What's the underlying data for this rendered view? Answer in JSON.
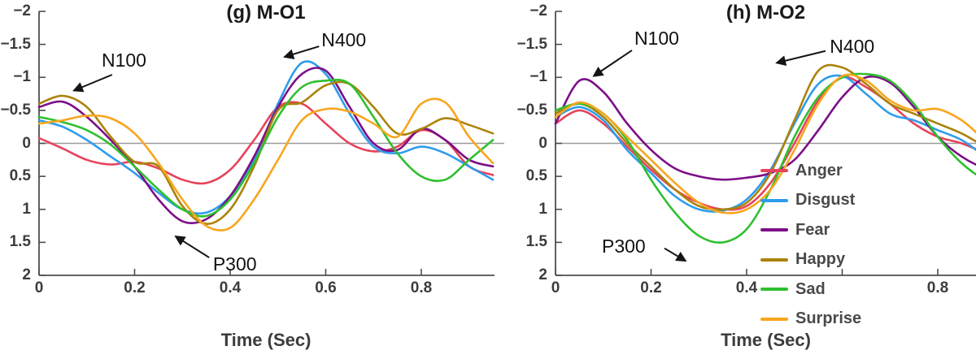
{
  "figure": {
    "background": "#ffffff"
  },
  "chart_data": [
    {
      "type": "line",
      "title": "(g) M-O1",
      "xlabel": "Time (Sec)",
      "ylabel": "",
      "xlim": [
        0,
        0.95
      ],
      "ylim": [
        -2,
        2
      ],
      "y_inverted": true,
      "grid": false,
      "zero_line": true,
      "xticks": [
        0,
        0.2,
        0.4,
        0.6,
        0.8
      ],
      "xtick_labels": [
        "0",
        "0.2",
        "0.4",
        "0.6",
        "0.8"
      ],
      "yticks": [
        -2,
        -1.5,
        -1,
        -0.5,
        0,
        0.5,
        1,
        1.5,
        2
      ],
      "ytick_labels": [
        "−2",
        "−1.5",
        "−1",
        "−0.5",
        "0",
        "0.5",
        "1",
        "1.5",
        "2"
      ],
      "x": [
        0,
        0.05,
        0.1,
        0.15,
        0.2,
        0.25,
        0.3,
        0.35,
        0.4,
        0.45,
        0.5,
        0.55,
        0.6,
        0.65,
        0.7,
        0.75,
        0.8,
        0.85,
        0.9,
        0.95
      ],
      "series": [
        {
          "name": "Anger",
          "color": "#e8435a",
          "values": [
            -0.08,
            0.08,
            0.25,
            0.32,
            0.28,
            0.38,
            0.55,
            0.6,
            0.4,
            -0.05,
            -0.55,
            -0.6,
            -0.3,
            0,
            0.12,
            0.05,
            -0.2,
            -0.05,
            0.35,
            0.48
          ]
        },
        {
          "name": "Disgust",
          "color": "#2f9ced",
          "values": [
            -0.35,
            -0.25,
            -0.05,
            0.2,
            0.45,
            0.75,
            1.0,
            1.05,
            0.8,
            0.25,
            -0.6,
            -1.22,
            -1.05,
            -0.45,
            0.05,
            0.15,
            0.05,
            0.15,
            0.35,
            0.55
          ]
        },
        {
          "name": "Fear",
          "color": "#7c0f87",
          "values": [
            -0.55,
            -0.63,
            -0.4,
            -0.05,
            0.35,
            0.85,
            1.18,
            1.15,
            0.8,
            0.2,
            -0.55,
            -1.05,
            -1.1,
            -0.55,
            0,
            0.1,
            -0.22,
            -0.05,
            0.25,
            0.35
          ]
        },
        {
          "name": "Happy",
          "color": "#ab830b",
          "values": [
            -0.6,
            -0.72,
            -0.55,
            -0.1,
            0.28,
            0.35,
            0.95,
            1.22,
            1.0,
            0.35,
            -0.5,
            -0.62,
            -0.88,
            -0.9,
            -0.55,
            -0.15,
            -0.22,
            -0.38,
            -0.28,
            -0.15
          ]
        },
        {
          "name": "Sad",
          "color": "#2fbf2f",
          "values": [
            -0.4,
            -0.32,
            -0.2,
            0.02,
            0.35,
            0.7,
            1.0,
            1.1,
            0.85,
            0.3,
            -0.4,
            -0.85,
            -0.95,
            -0.9,
            -0.4,
            0.15,
            0.5,
            0.55,
            0.25,
            -0.05
          ]
        },
        {
          "name": "Surprise",
          "color": "#f8a61e",
          "values": [
            -0.3,
            -0.35,
            -0.42,
            -0.38,
            -0.15,
            0.3,
            0.85,
            1.25,
            1.28,
            0.85,
            0.25,
            -0.35,
            -0.52,
            -0.48,
            -0.3,
            -0.1,
            -0.6,
            -0.62,
            -0.1,
            0.3
          ]
        }
      ],
      "annotations": [
        {
          "text": "N100",
          "text_xy": [
            0.131,
            -1.26
          ],
          "arrow_start": [
            0.153,
            -1.04
          ],
          "arrow_tip": [
            0.073,
            -0.8
          ]
        },
        {
          "text": "N400",
          "text_xy": [
            0.591,
            -1.57
          ],
          "arrow_start": [
            0.586,
            -1.47
          ],
          "arrow_tip": [
            0.514,
            -1.31
          ]
        },
        {
          "text": "P300",
          "text_xy": [
            0.364,
            1.83
          ],
          "arrow_start": [
            0.356,
            1.73
          ],
          "arrow_tip": [
            0.286,
            1.41
          ]
        }
      ],
      "legend_visible": false
    },
    {
      "type": "line",
      "title": "(h) M-O2",
      "xlabel": "Time (Sec)",
      "ylabel": "",
      "xlim": [
        0,
        0.95
      ],
      "ylim": [
        -2,
        2
      ],
      "y_inverted": true,
      "grid": false,
      "zero_line": true,
      "xticks": [
        0,
        0.2,
        0.4,
        0.6,
        0.8
      ],
      "xtick_labels": [
        "0",
        "0.2",
        "0.4",
        "",
        "0.8"
      ],
      "yticks": [
        -2,
        -1.5,
        -1,
        -0.5,
        0,
        0.5,
        1,
        1.5,
        2
      ],
      "ytick_labels": [
        "−2",
        "−1.5",
        "−1",
        "−0.5",
        "0",
        "0.5",
        "1",
        "1.5",
        "2"
      ],
      "x": [
        0,
        0.05,
        0.1,
        0.15,
        0.2,
        0.25,
        0.3,
        0.35,
        0.4,
        0.45,
        0.5,
        0.55,
        0.6,
        0.65,
        0.7,
        0.75,
        0.8,
        0.85,
        0.9,
        0.95
      ],
      "series": [
        {
          "name": "Anger",
          "color": "#e8435a",
          "values": [
            -0.3,
            -0.5,
            -0.3,
            0.05,
            0.4,
            0.7,
            0.9,
            1.0,
            0.95,
            0.6,
            0.0,
            -0.65,
            -1.0,
            -0.85,
            -0.6,
            -0.3,
            -0.1,
            0.0,
            0.15,
            0.3
          ]
        },
        {
          "name": "Disgust",
          "color": "#2f9ced",
          "values": [
            -0.4,
            -0.55,
            -0.35,
            0.1,
            0.45,
            0.8,
            1.0,
            1.02,
            0.85,
            0.4,
            -0.3,
            -0.9,
            -1.02,
            -0.75,
            -0.45,
            -0.35,
            -0.2,
            -0.05,
            0.2,
            0.4
          ]
        },
        {
          "name": "Fear",
          "color": "#7c0f87",
          "values": [
            -0.3,
            -0.95,
            -0.78,
            -0.3,
            0.1,
            0.38,
            0.5,
            0.55,
            0.52,
            0.45,
            0.25,
            -0.2,
            -0.7,
            -1.0,
            -0.92,
            -0.55,
            -0.1,
            0.2,
            0.38,
            0.45
          ]
        },
        {
          "name": "Happy",
          "color": "#ab830b",
          "values": [
            -0.45,
            -0.6,
            -0.4,
            0.0,
            0.35,
            0.7,
            0.95,
            1.0,
            0.9,
            0.45,
            -0.35,
            -1.1,
            -1.15,
            -0.9,
            -0.6,
            -0.45,
            -0.3,
            -0.15,
            0.05,
            0.2
          ]
        },
        {
          "name": "Sad",
          "color": "#2fbf2f",
          "values": [
            -0.5,
            -0.6,
            -0.45,
            -0.05,
            0.55,
            1.05,
            1.4,
            1.5,
            1.3,
            0.7,
            -0.1,
            -0.7,
            -1.0,
            -1.05,
            -0.95,
            -0.6,
            -0.1,
            0.3,
            0.55,
            0.6
          ]
        },
        {
          "name": "Surprise",
          "color": "#f8a61e",
          "values": [
            -0.4,
            -0.62,
            -0.45,
            -0.1,
            0.25,
            0.6,
            0.9,
            1.05,
            1.0,
            0.7,
            0.1,
            -0.6,
            -1.02,
            -0.95,
            -0.65,
            -0.5,
            -0.52,
            -0.35,
            -0.05,
            0.15
          ]
        }
      ],
      "annotations": [
        {
          "text": "N100",
          "text_xy": [
            0.165,
            -1.6
          ],
          "arrow_start": [
            0.16,
            -1.41
          ],
          "arrow_tip": [
            0.08,
            -1.02
          ]
        },
        {
          "text": "N400",
          "text_xy": [
            0.574,
            -1.47
          ],
          "arrow_start": [
            0.565,
            -1.4
          ],
          "arrow_tip": [
            0.463,
            -1.22
          ]
        },
        {
          "text": "P300",
          "text_xy": [
            0.097,
            1.56
          ],
          "arrow_start": [
            0.228,
            1.59
          ],
          "arrow_tip": [
            0.272,
            1.78
          ]
        }
      ],
      "legend_visible": true,
      "legend_entries": [
        "Anger",
        "Disgust",
        "Fear",
        "Happy",
        "Sad",
        "Surprise"
      ]
    }
  ]
}
